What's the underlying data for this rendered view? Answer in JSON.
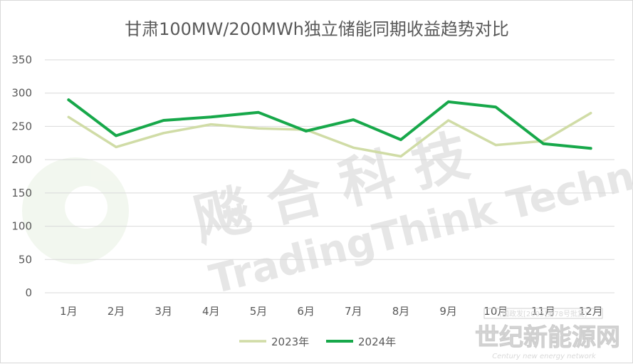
{
  "chart_data": {
    "type": "line",
    "title": "甘肃100MW/200MWh独立储能同期收益趋势对比",
    "xlabel": "",
    "ylabel": "",
    "categories": [
      "1月",
      "2月",
      "3月",
      "4月",
      "5月",
      "6月",
      "7月",
      "8月",
      "9月",
      "10月",
      "11月",
      "12月"
    ],
    "series": [
      {
        "name": "2023年",
        "color": "#d0dca6",
        "values": [
          264,
          219,
          240,
          253,
          247,
          245,
          218,
          205,
          259,
          222,
          228,
          270
        ]
      },
      {
        "name": "2024年",
        "color": "#17a84a",
        "values": [
          290,
          236,
          259,
          264,
          271,
          243,
          260,
          230,
          287,
          279,
          224,
          217
        ]
      }
    ],
    "ylim": [
      0,
      350
    ],
    "yticks": [
      "0",
      "50",
      "100",
      "150",
      "200",
      "250",
      "300",
      "350"
    ],
    "grid": true,
    "legend": "bottom"
  },
  "watermark": {
    "cn": "飚 合 科 技",
    "en": "TradingThink Technology"
  },
  "footer": {
    "note": "(国政发[2005]第78号批复)",
    "site": "世纪新能源网",
    "site_en": "Century new energy network"
  }
}
